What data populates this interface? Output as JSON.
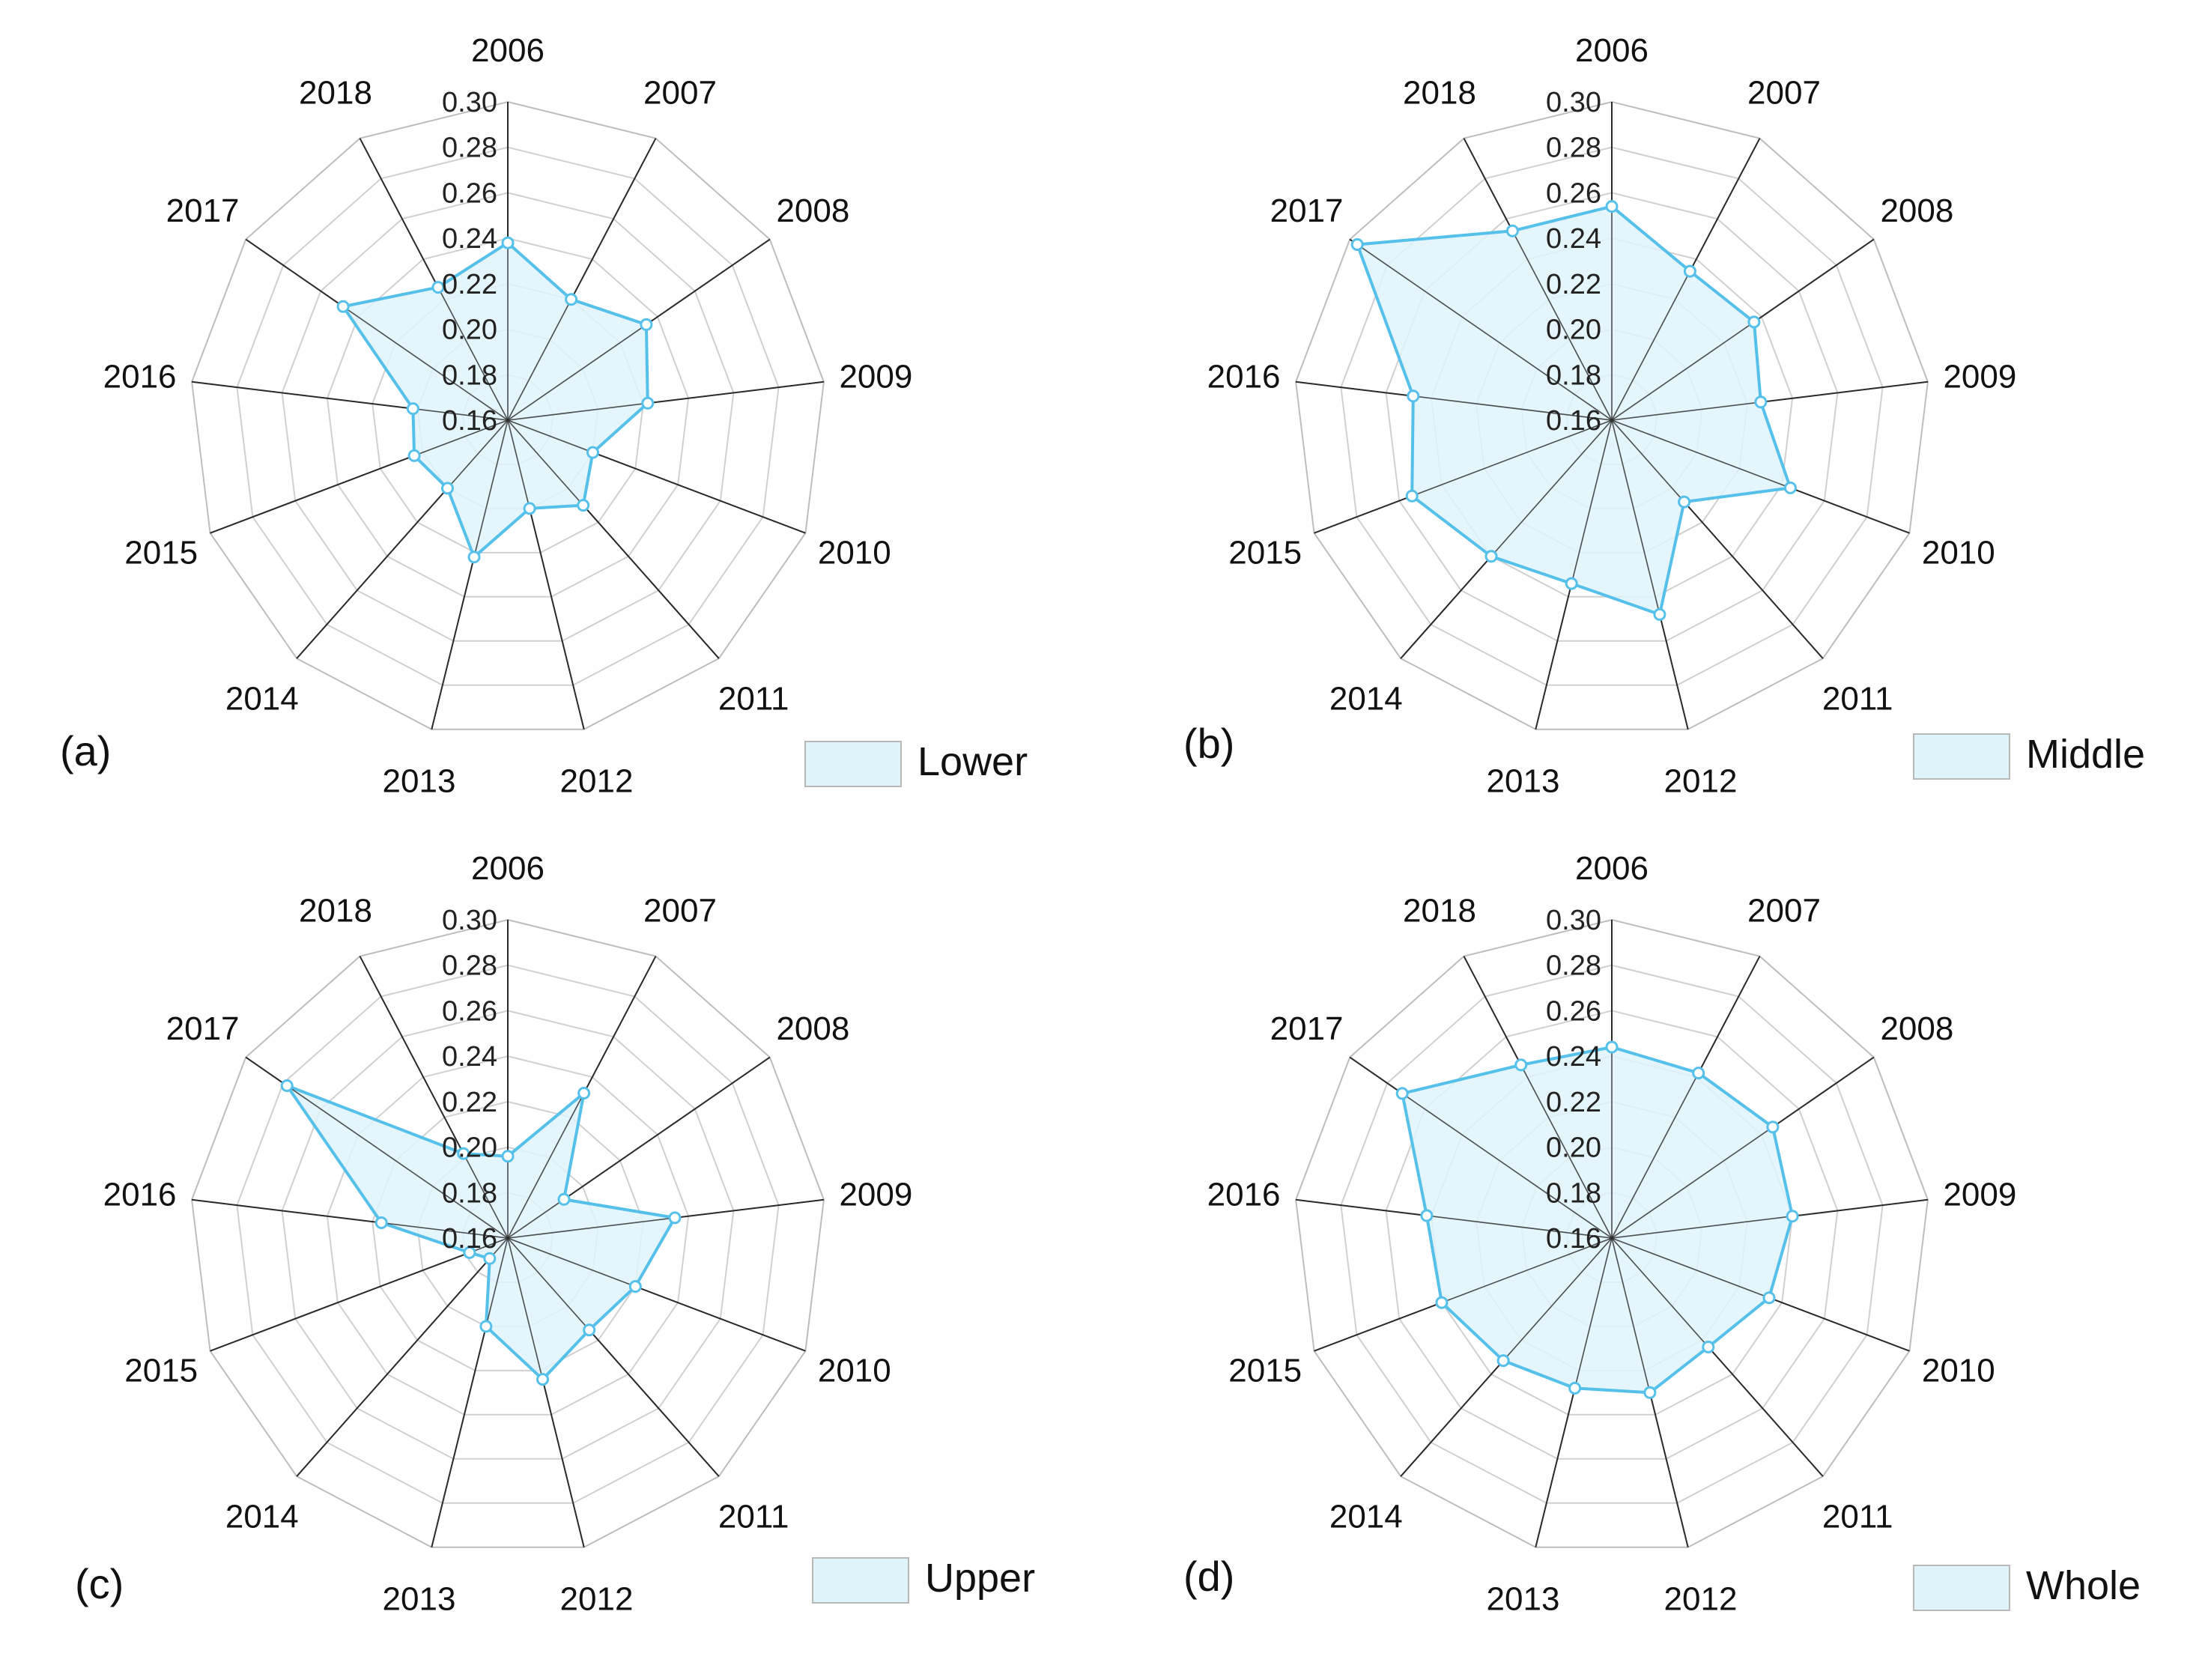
{
  "chart_data": [
    {
      "type": "radar",
      "panel_label": "(a)",
      "legend": "Lower",
      "categories": [
        "2006",
        "2007",
        "2008",
        "2009",
        "2010",
        "2011",
        "2012",
        "2013",
        "2014",
        "2015",
        "2016",
        "2017",
        "2018"
      ],
      "tick_labels": [
        "0.16",
        "0.18",
        "0.20",
        "0.22",
        "0.24",
        "0.26",
        "0.28",
        "0.30"
      ],
      "rmin": 0.16,
      "rmax": 0.3,
      "values": [
        0.238,
        0.22,
        0.234,
        0.222,
        0.2,
        0.21,
        0.2,
        0.222,
        0.2,
        0.204,
        0.202,
        0.248,
        0.226
      ],
      "fill_color": "#dff3fb",
      "line_color": "#55c1ea"
    },
    {
      "type": "radar",
      "panel_label": "(b)",
      "legend": "Middle",
      "categories": [
        "2006",
        "2007",
        "2008",
        "2009",
        "2010",
        "2011",
        "2012",
        "2013",
        "2014",
        "2015",
        "2016",
        "2017",
        "2018"
      ],
      "tick_labels": [
        "0.16",
        "0.18",
        "0.20",
        "0.22",
        "0.24",
        "0.26",
        "0.28",
        "0.30"
      ],
      "rmin": 0.16,
      "rmax": 0.3,
      "values": [
        0.254,
        0.234,
        0.236,
        0.226,
        0.244,
        0.208,
        0.248,
        0.234,
        0.24,
        0.254,
        0.248,
        0.296,
        0.254
      ],
      "fill_color": "#dff3fb",
      "line_color": "#55c1ea"
    },
    {
      "type": "radar",
      "panel_label": "(c)",
      "legend": "Upper",
      "categories": [
        "2006",
        "2007",
        "2008",
        "2009",
        "2010",
        "2011",
        "2012",
        "2013",
        "2014",
        "2015",
        "2016",
        "2017",
        "2018"
      ],
      "tick_labels": [
        "0.16",
        "0.18",
        "0.20",
        "0.22",
        "0.24",
        "0.26",
        "0.28",
        "0.30"
      ],
      "rmin": 0.16,
      "rmax": 0.3,
      "values": [
        0.196,
        0.232,
        0.19,
        0.234,
        0.22,
        0.214,
        0.224,
        0.2,
        0.172,
        0.178,
        0.216,
        0.278,
        0.202
      ],
      "fill_color": "#dff3fb",
      "line_color": "#55c1ea"
    },
    {
      "type": "radar",
      "panel_label": "(d)",
      "legend": "Whole",
      "categories": [
        "2006",
        "2007",
        "2008",
        "2009",
        "2010",
        "2011",
        "2012",
        "2013",
        "2014",
        "2015",
        "2016",
        "2017",
        "2018"
      ],
      "tick_labels": [
        "0.16",
        "0.18",
        "0.20",
        "0.22",
        "0.24",
        "0.26",
        "0.28",
        "0.30"
      ],
      "rmin": 0.16,
      "rmax": 0.3,
      "values": [
        0.244,
        0.242,
        0.246,
        0.24,
        0.234,
        0.224,
        0.23,
        0.228,
        0.232,
        0.24,
        0.242,
        0.272,
        0.246
      ],
      "fill_color": "#dff3fb",
      "line_color": "#55c1ea"
    }
  ]
}
